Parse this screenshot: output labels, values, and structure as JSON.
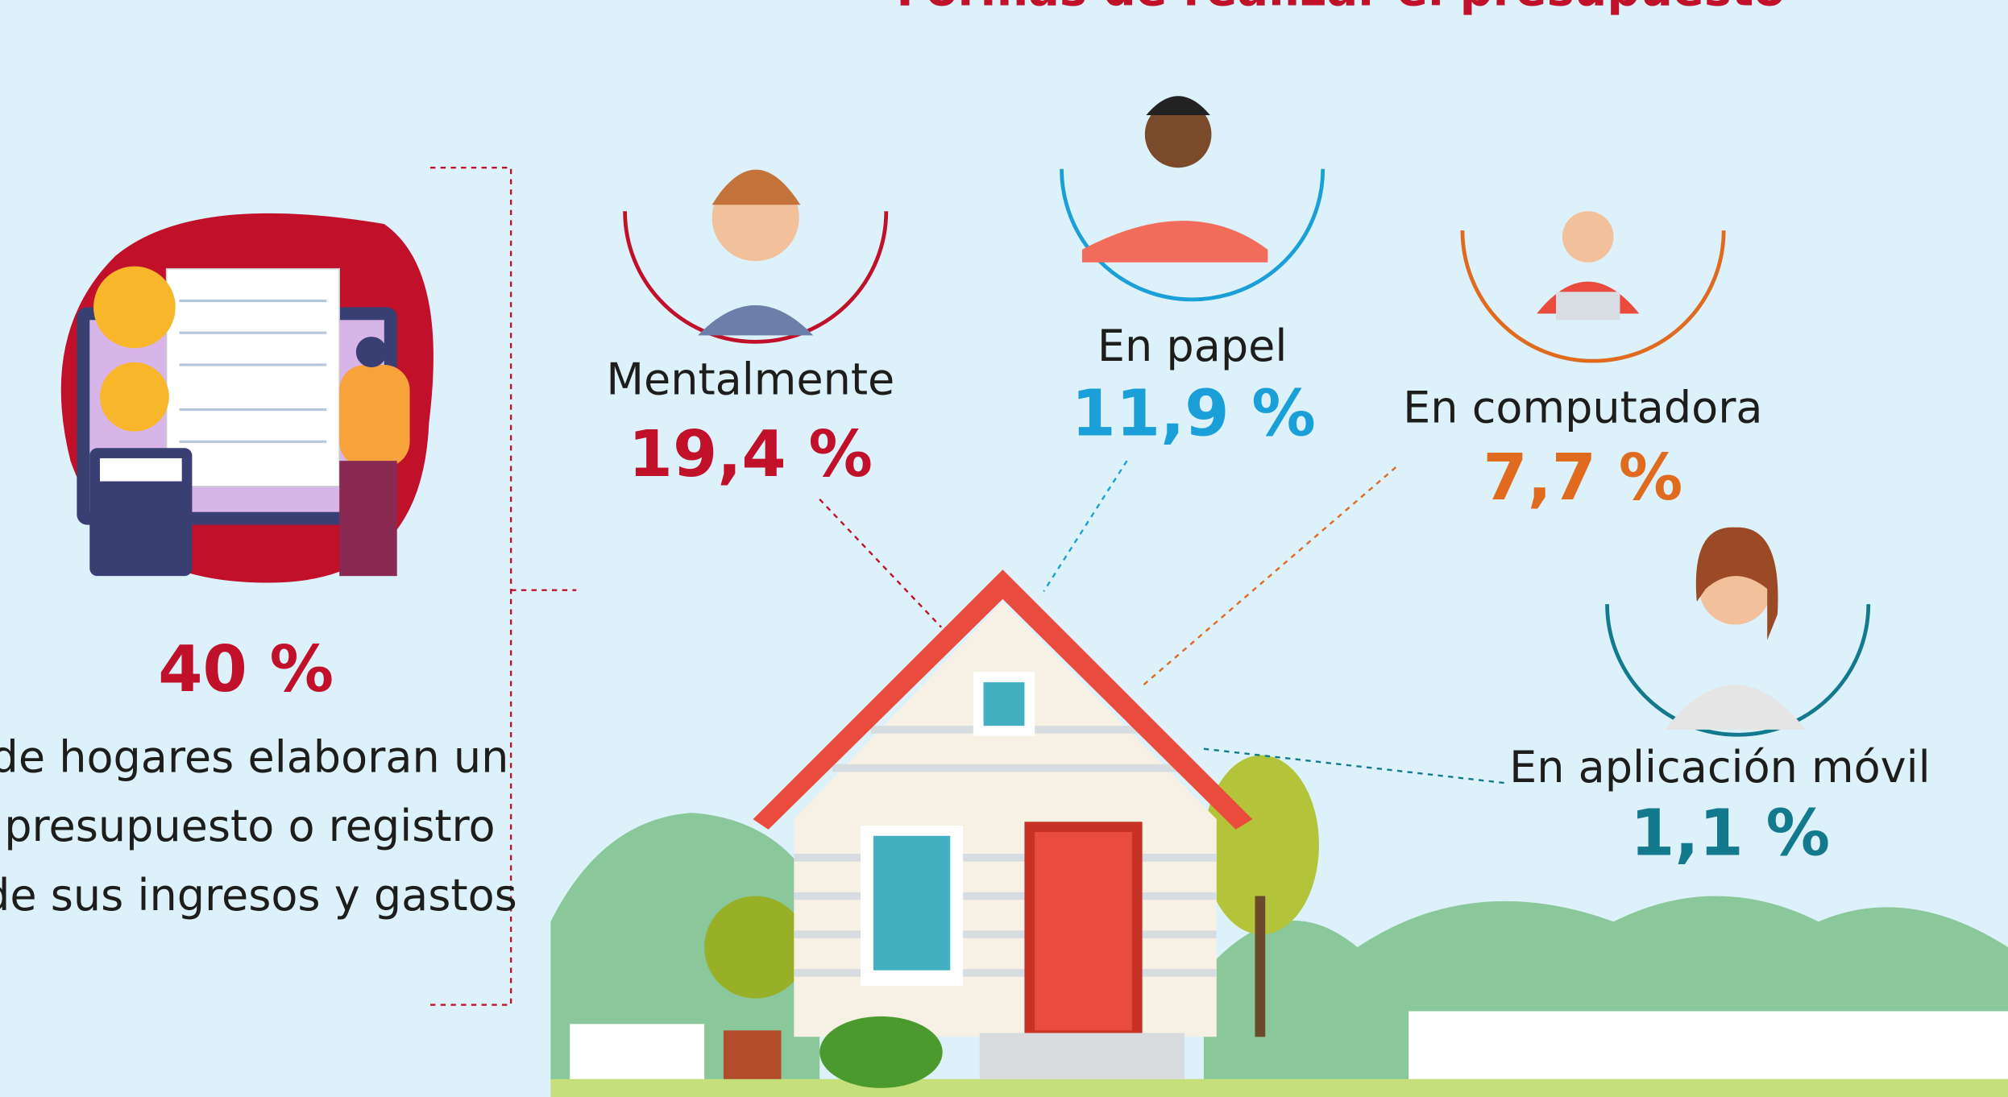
{
  "header": {
    "title": "Formas de realizar el presupuesto"
  },
  "summary": {
    "percent": "40 %",
    "lines": [
      "de hogares elaboran un",
      "presupuesto o registro",
      "de sus ingresos y gastos"
    ]
  },
  "methods": [
    {
      "label": "Mentalmente",
      "percent": "19,4 %"
    },
    {
      "label": "En papel",
      "percent": "11,9 %"
    },
    {
      "label": "En computadora",
      "percent": "7,7 %"
    },
    {
      "label": "En aplicación móvil",
      "percent": "1,1 %"
    }
  ]
}
